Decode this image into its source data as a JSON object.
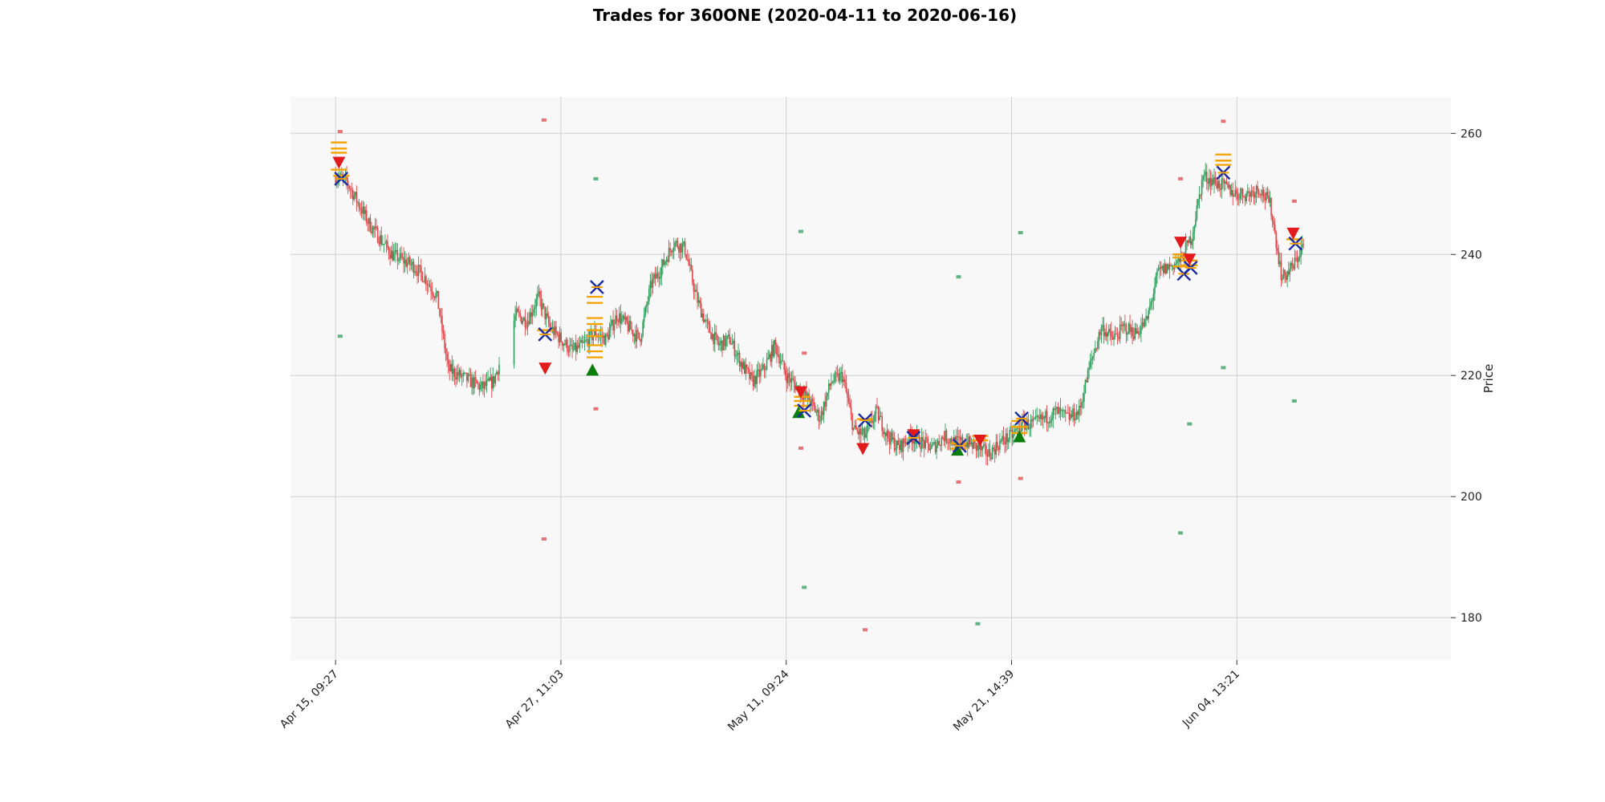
{
  "chart_data": {
    "type": "candlestick",
    "title": "Trades for 360ONE (2020-04-11 to 2020-06-16)",
    "ylabel": "Price",
    "xlabel": "",
    "ylim": [
      173,
      266
    ],
    "y_ticks": [
      180,
      200,
      220,
      240,
      260
    ],
    "x_ticks": [
      "Apr 15, 09:27",
      "Apr 27, 11:03",
      "May 11, 09:24",
      "May 21, 14:39",
      "Jun 04, 13:21"
    ],
    "grid": true,
    "colors": {
      "up": "#2e9e5b",
      "down": "#e0474c",
      "buy": "#0a7d0a",
      "sell": "#e31a1c",
      "exit": "#1a2aa0",
      "order": "#f5a300",
      "panel": "#f8f8f8",
      "grid": "#d0d0d0"
    },
    "price_path": [
      [
        0,
        253
      ],
      [
        1,
        252
      ],
      [
        3,
        245
      ],
      [
        5,
        240
      ],
      [
        7,
        238
      ],
      [
        8,
        236
      ],
      [
        9,
        233
      ],
      [
        10,
        221
      ],
      [
        12,
        219
      ],
      [
        13,
        218
      ],
      [
        14,
        219
      ],
      [
        16,
        230
      ],
      [
        17,
        229
      ],
      [
        18,
        233
      ],
      [
        19,
        228
      ],
      [
        20,
        226
      ],
      [
        21,
        224
      ],
      [
        22,
        225
      ],
      [
        23,
        227
      ],
      [
        24,
        226
      ],
      [
        25,
        230
      ],
      [
        26,
        228
      ],
      [
        27,
        226
      ],
      [
        28,
        235
      ],
      [
        29,
        238
      ],
      [
        30,
        242
      ],
      [
        31,
        241
      ],
      [
        32,
        233
      ],
      [
        33,
        228
      ],
      [
        34,
        225
      ],
      [
        35,
        226
      ],
      [
        36,
        222
      ],
      [
        37,
        219
      ],
      [
        38,
        221
      ],
      [
        39,
        225
      ],
      [
        40,
        220
      ],
      [
        41,
        218
      ],
      [
        42,
        216
      ],
      [
        43,
        213
      ],
      [
        44,
        219
      ],
      [
        45,
        220
      ],
      [
        46,
        211
      ],
      [
        47,
        210
      ],
      [
        48,
        214
      ],
      [
        49,
        210
      ],
      [
        50,
        208
      ],
      [
        51,
        210
      ],
      [
        52,
        209
      ],
      [
        53,
        208
      ],
      [
        54,
        210
      ],
      [
        55,
        209
      ],
      [
        56,
        209
      ],
      [
        57,
        208
      ],
      [
        58,
        207
      ],
      [
        59,
        209
      ],
      [
        60,
        210
      ],
      [
        61,
        212
      ],
      [
        62,
        212
      ],
      [
        63,
        213
      ],
      [
        64,
        214
      ],
      [
        65,
        213
      ],
      [
        66,
        214
      ],
      [
        67,
        222
      ],
      [
        68,
        228
      ],
      [
        69,
        226
      ],
      [
        70,
        228
      ],
      [
        71,
        227
      ],
      [
        72,
        229
      ],
      [
        73,
        237
      ],
      [
        74,
        238
      ],
      [
        75,
        239
      ],
      [
        76,
        243
      ],
      [
        77,
        253
      ],
      [
        78,
        252
      ],
      [
        79,
        251
      ],
      [
        80,
        250
      ],
      [
        81,
        250
      ],
      [
        82,
        251
      ],
      [
        83,
        248
      ],
      [
        84,
        236
      ],
      [
        85,
        238
      ],
      [
        86,
        242
      ]
    ],
    "markers": [
      {
        "type": "sell",
        "t": 0.3,
        "price": 255.2
      },
      {
        "type": "exit",
        "t": 0.5,
        "price": 252.5
      },
      {
        "type": "order",
        "t": 0.3,
        "price": 258.5
      },
      {
        "type": "order",
        "t": 0.3,
        "price": 257.5
      },
      {
        "type": "order",
        "t": 0.3,
        "price": 256.8
      },
      {
        "type": "order",
        "t": 0.3,
        "price": 254.0
      },
      {
        "type": "order",
        "t": 0.5,
        "price": 253.0
      },
      {
        "type": "sell",
        "t": 18.6,
        "price": 221.2
      },
      {
        "type": "exit",
        "t": 18.6,
        "price": 226.8
      },
      {
        "type": "order",
        "t": 18.6,
        "price": 227.5
      },
      {
        "type": "buy",
        "t": 22.8,
        "price": 220.9
      },
      {
        "type": "exit",
        "t": 23.2,
        "price": 234.6
      },
      {
        "type": "order",
        "t": 23.0,
        "price": 233.0
      },
      {
        "type": "order",
        "t": 23.0,
        "price": 232.0
      },
      {
        "type": "order",
        "t": 23.0,
        "price": 229.5
      },
      {
        "type": "order",
        "t": 23.0,
        "price": 228.5
      },
      {
        "type": "order",
        "t": 23.0,
        "price": 227.5
      },
      {
        "type": "order",
        "t": 23.0,
        "price": 226.5
      },
      {
        "type": "order",
        "t": 23.0,
        "price": 225.0
      },
      {
        "type": "order",
        "t": 23.0,
        "price": 224.0
      },
      {
        "type": "order",
        "t": 23.0,
        "price": 223.0
      },
      {
        "type": "sell",
        "t": 41.3,
        "price": 217.3
      },
      {
        "type": "buy",
        "t": 41.1,
        "price": 213.9
      },
      {
        "type": "exit",
        "t": 41.6,
        "price": 214.2
      },
      {
        "type": "order",
        "t": 41.4,
        "price": 216.5
      },
      {
        "type": "order",
        "t": 41.4,
        "price": 215.8
      },
      {
        "type": "order",
        "t": 41.4,
        "price": 215.0
      },
      {
        "type": "sell",
        "t": 46.8,
        "price": 207.9
      },
      {
        "type": "exit",
        "t": 47.0,
        "price": 212.6
      },
      {
        "type": "order",
        "t": 47.0,
        "price": 212.8
      },
      {
        "type": "sell",
        "t": 51.3,
        "price": 210.2
      },
      {
        "type": "exit",
        "t": 51.3,
        "price": 209.7
      },
      {
        "type": "buy",
        "t": 55.2,
        "price": 207.7
      },
      {
        "type": "exit",
        "t": 55.4,
        "price": 208.4
      },
      {
        "type": "order",
        "t": 55.3,
        "price": 208.8
      },
      {
        "type": "order",
        "t": 55.3,
        "price": 207.9
      },
      {
        "type": "sell",
        "t": 57.2,
        "price": 209.3
      },
      {
        "type": "order",
        "t": 57.2,
        "price": 210.0
      },
      {
        "type": "order",
        "t": 57.2,
        "price": 209.3
      },
      {
        "type": "buy",
        "t": 60.7,
        "price": 209.9
      },
      {
        "type": "exit",
        "t": 60.9,
        "price": 212.9
      },
      {
        "type": "order",
        "t": 60.7,
        "price": 212.5
      },
      {
        "type": "order",
        "t": 60.7,
        "price": 211.5
      },
      {
        "type": "order",
        "t": 60.7,
        "price": 210.5
      },
      {
        "type": "sell",
        "t": 75.0,
        "price": 242.0
      },
      {
        "type": "exit",
        "t": 75.3,
        "price": 236.8
      },
      {
        "type": "order",
        "t": 75.0,
        "price": 240.0
      },
      {
        "type": "order",
        "t": 75.0,
        "price": 239.5
      },
      {
        "type": "order",
        "t": 75.0,
        "price": 238.0
      },
      {
        "type": "sell",
        "t": 75.8,
        "price": 239.2
      },
      {
        "type": "exit",
        "t": 75.9,
        "price": 237.8
      },
      {
        "type": "order",
        "t": 75.8,
        "price": 239.0
      },
      {
        "type": "order",
        "t": 75.8,
        "price": 238.2
      },
      {
        "type": "exit",
        "t": 78.8,
        "price": 253.5
      },
      {
        "type": "order",
        "t": 78.8,
        "price": 256.5
      },
      {
        "type": "order",
        "t": 78.8,
        "price": 255.5
      },
      {
        "type": "order",
        "t": 78.8,
        "price": 254.8
      },
      {
        "type": "sell",
        "t": 85.0,
        "price": 243.5
      },
      {
        "type": "exit",
        "t": 85.2,
        "price": 241.8
      },
      {
        "type": "order",
        "t": 85.1,
        "price": 242.5
      }
    ],
    "outlier_ticks": [
      {
        "t": 0.4,
        "price": 260.3,
        "kind": "down"
      },
      {
        "t": 0.4,
        "price": 226.5,
        "kind": "up"
      },
      {
        "t": 18.5,
        "price": 262.2,
        "kind": "down"
      },
      {
        "t": 18.5,
        "price": 193.0,
        "kind": "down"
      },
      {
        "t": 23.1,
        "price": 252.5,
        "kind": "up"
      },
      {
        "t": 23.1,
        "price": 214.5,
        "kind": "down"
      },
      {
        "t": 41.3,
        "price": 243.8,
        "kind": "up"
      },
      {
        "t": 41.6,
        "price": 223.7,
        "kind": "down"
      },
      {
        "t": 41.3,
        "price": 208.0,
        "kind": "down"
      },
      {
        "t": 41.6,
        "price": 185.0,
        "kind": "up"
      },
      {
        "t": 47.0,
        "price": 178.0,
        "kind": "down"
      },
      {
        "t": 55.3,
        "price": 236.3,
        "kind": "up"
      },
      {
        "t": 55.3,
        "price": 202.4,
        "kind": "down"
      },
      {
        "t": 57.0,
        "price": 179.0,
        "kind": "up"
      },
      {
        "t": 60.8,
        "price": 243.6,
        "kind": "up"
      },
      {
        "t": 60.8,
        "price": 203.0,
        "kind": "down"
      },
      {
        "t": 75.0,
        "price": 252.5,
        "kind": "down"
      },
      {
        "t": 75.0,
        "price": 194.0,
        "kind": "up"
      },
      {
        "t": 75.8,
        "price": 212.0,
        "kind": "up"
      },
      {
        "t": 78.8,
        "price": 262.0,
        "kind": "down"
      },
      {
        "t": 78.8,
        "price": 221.3,
        "kind": "up"
      },
      {
        "t": 85.1,
        "price": 248.8,
        "kind": "down"
      },
      {
        "t": 85.1,
        "price": 215.8,
        "kind": "up"
      }
    ]
  }
}
